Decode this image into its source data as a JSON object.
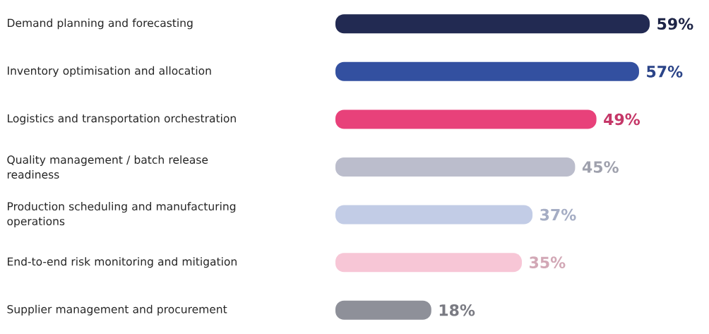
{
  "chart_data": {
    "type": "bar",
    "orientation": "horizontal",
    "categories": [
      "Demand planning and forecasting",
      "Inventory optimisation and allocation",
      "Logistics and transportation orchestration",
      "Quality management / batch release readiness",
      "Production scheduling and manufacturing operations",
      "End-to-end risk monitoring and mitigation",
      "Supplier management and procurement"
    ],
    "values": [
      59,
      57,
      49,
      45,
      37,
      35,
      18
    ],
    "value_labels": [
      "59%",
      "57%",
      "49%",
      "45%",
      "37%",
      "35%",
      "18%"
    ],
    "colors": [
      "#222a52",
      "#3350a0",
      "#e8417a",
      "#bbbdcc",
      "#c2cce6",
      "#f7c6d6",
      "#8e9099"
    ],
    "data_labels": true
  }
}
